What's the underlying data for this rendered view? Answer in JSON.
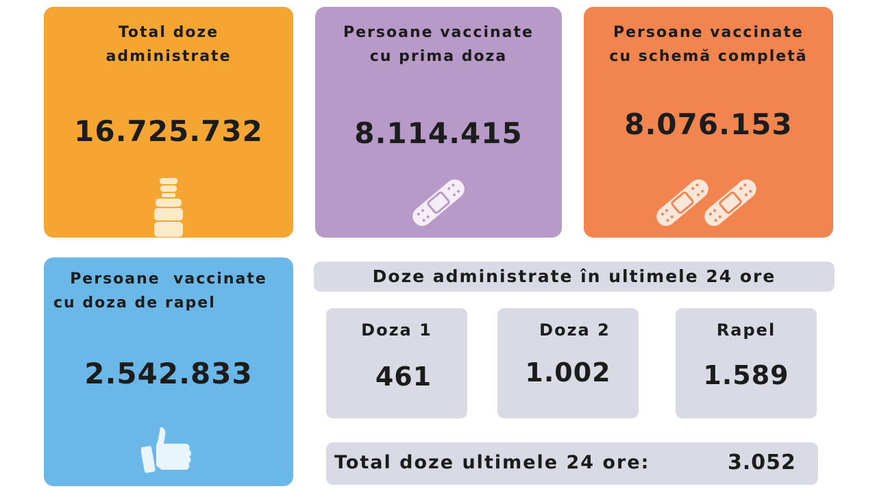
{
  "cards": [
    {
      "title_l1": "Total doze",
      "title_l2": "administrate",
      "value": "16.725.732",
      "icon": "vaccine-vial-icon",
      "color": "#f4a532"
    },
    {
      "title_l1": "Persoane vaccinate",
      "title_l2": "cu prima doza",
      "value": "8.114.415",
      "icon": "bandage-icon",
      "color": "#b89ac9"
    },
    {
      "title_l1": "Persoane vaccinate",
      "title_l2": "cu schemă completă",
      "value": "8.076.153",
      "icon": "double-bandage-icon",
      "color": "#f2854f"
    },
    {
      "title_l1": "Persoane  vaccinate",
      "title_l2": "cu doza de rapel",
      "value": "2.542.833",
      "icon": "thumbs-up-icon",
      "color": "#6bb8e8"
    }
  ],
  "last24": {
    "header": "Doze administrate în ultimele 24 ore",
    "doses": [
      {
        "label": "Doza 1",
        "value": "461"
      },
      {
        "label": "Doza 2",
        "value": "1.002"
      },
      {
        "label": "Rapel",
        "value": "1.589"
      }
    ],
    "total_label": "Total doze ultimele 24 ore:",
    "total_value": "3.052",
    "panel_color": "#d8dbe4"
  }
}
